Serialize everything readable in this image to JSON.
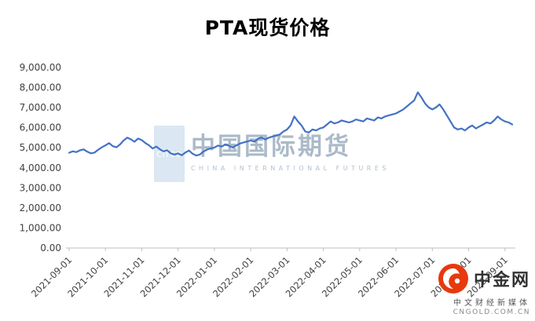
{
  "chart_data": {
    "type": "line",
    "title": "PTA现货价格",
    "xlabel": "",
    "ylabel": "",
    "ylim": [
      0,
      9000
    ],
    "grid": "off",
    "legend": "none",
    "line_color": "#4472C4",
    "axis_color": "#bfbfbf",
    "label_color": "#404040",
    "y_tick_labels": [
      "0.00",
      "1,000.00",
      "2,000.00",
      "3,000.00",
      "4,000.00",
      "5,000.00",
      "6,000.00",
      "7,000.00",
      "8,000.00",
      "9,000.00"
    ],
    "x_tick_labels": [
      "2021-09-01",
      "2021-10-01",
      "2021-11-01",
      "2021-12-01",
      "2022-01-01",
      "2022-02-01",
      "2022-03-01",
      "2022-04-01",
      "2022-05-01",
      "2022-06-01",
      "2022-07-01",
      "2022-08-01",
      "2022-09-01"
    ],
    "points_per_month": 10,
    "values": [
      4750,
      4820,
      4780,
      4870,
      4920,
      4800,
      4720,
      4760,
      4900,
      5020,
      5120,
      5230,
      5080,
      5020,
      5160,
      5360,
      5500,
      5420,
      5300,
      5460,
      5380,
      5230,
      5120,
      4960,
      5060,
      4920,
      4820,
      4870,
      4720,
      4660,
      4720,
      4620,
      4760,
      4860,
      4700,
      4610,
      4660,
      4810,
      4910,
      4960,
      5010,
      5110,
      5060,
      5160,
      5100,
      5010,
      5110,
      5210,
      5260,
      5310,
      5360,
      5300,
      5450,
      5510,
      5410,
      5500,
      5560,
      5610,
      5660,
      5810,
      5910,
      6120,
      6560,
      6310,
      6110,
      5810,
      5760,
      5910,
      5860,
      5960,
      6010,
      6160,
      6310,
      6210,
      6260,
      6360,
      6310,
      6260,
      6310,
      6410,
      6360,
      6310,
      6460,
      6410,
      6360,
      6510,
      6460,
      6560,
      6610,
      6660,
      6710,
      6810,
      6910,
      7060,
      7210,
      7360,
      7760,
      7510,
      7210,
      7010,
      6910,
      7010,
      7160,
      6910,
      6610,
      6310,
      6010,
      5910,
      5960,
      5860,
      6010,
      6110,
      5960,
      6060,
      6160,
      6260,
      6210,
      6360,
      6560,
      6410,
      6310,
      6260,
      6160
    ]
  },
  "watermark": {
    "logo_text": "cifco",
    "cn": "中国国际期货",
    "en": "CHINA INTERNATIONAL FUTURES"
  },
  "brand": {
    "name": "中金网",
    "tagline": "中文财经新媒体",
    "url": "CNGOLD.COM.CN",
    "logo_color": "#e8380d"
  }
}
